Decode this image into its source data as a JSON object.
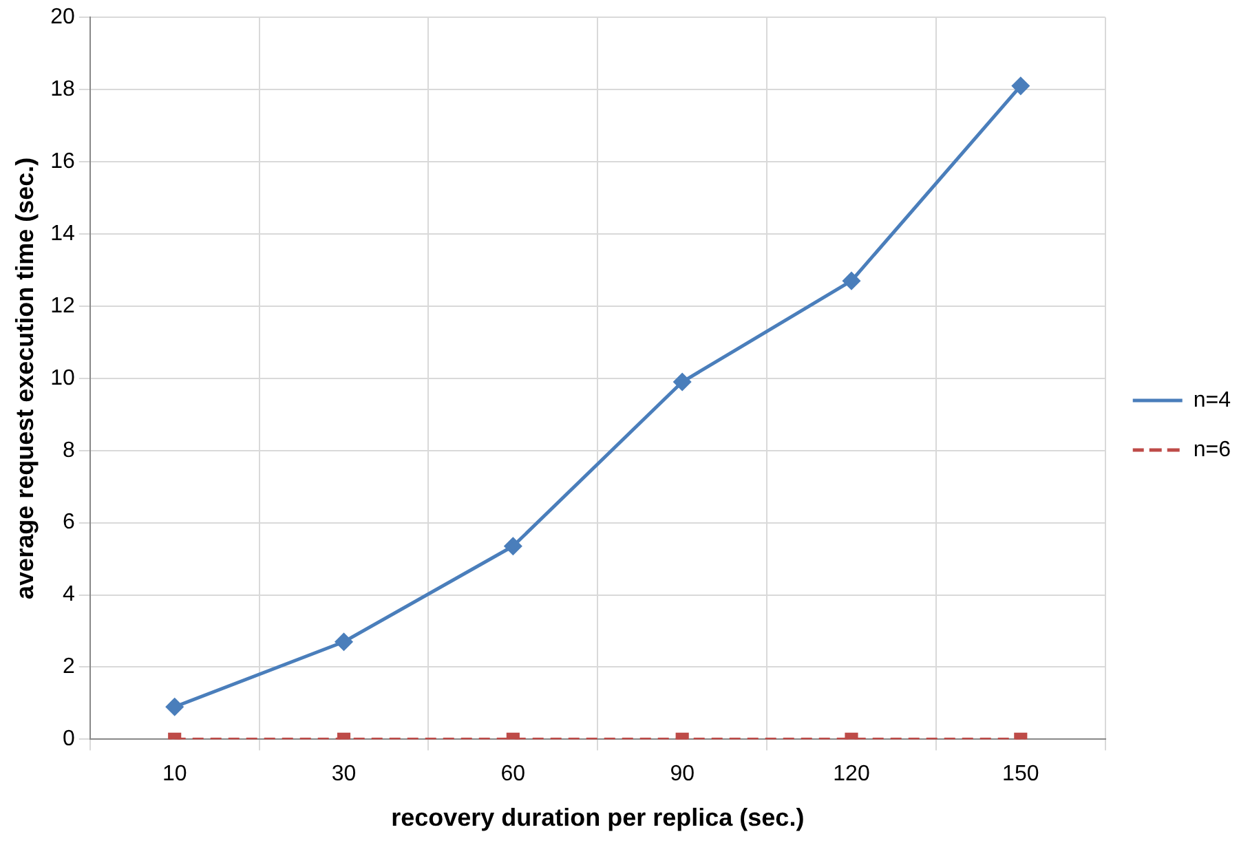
{
  "chart_data": {
    "type": "line",
    "xlabel": "recovery duration per replica (sec.)",
    "ylabel": "average request execution time (sec.)",
    "categories": [
      "10",
      "30",
      "60",
      "90",
      "120",
      "150"
    ],
    "series": [
      {
        "name": "n=4",
        "color": "#4a7ebb",
        "values": [
          0.9,
          2.7,
          5.35,
          9.9,
          12.7,
          18.1
        ],
        "marker": "diamond",
        "line_style": "solid"
      },
      {
        "name": "n=6",
        "color": "#be4b48",
        "values": [
          0,
          0,
          0,
          0,
          0,
          0
        ],
        "marker": "square",
        "line_style": "dashed"
      }
    ],
    "ylim": [
      0,
      20
    ],
    "yticks": [
      0,
      2,
      4,
      6,
      8,
      10,
      12,
      14,
      16,
      18,
      20
    ],
    "grid": true,
    "legend": "right"
  }
}
